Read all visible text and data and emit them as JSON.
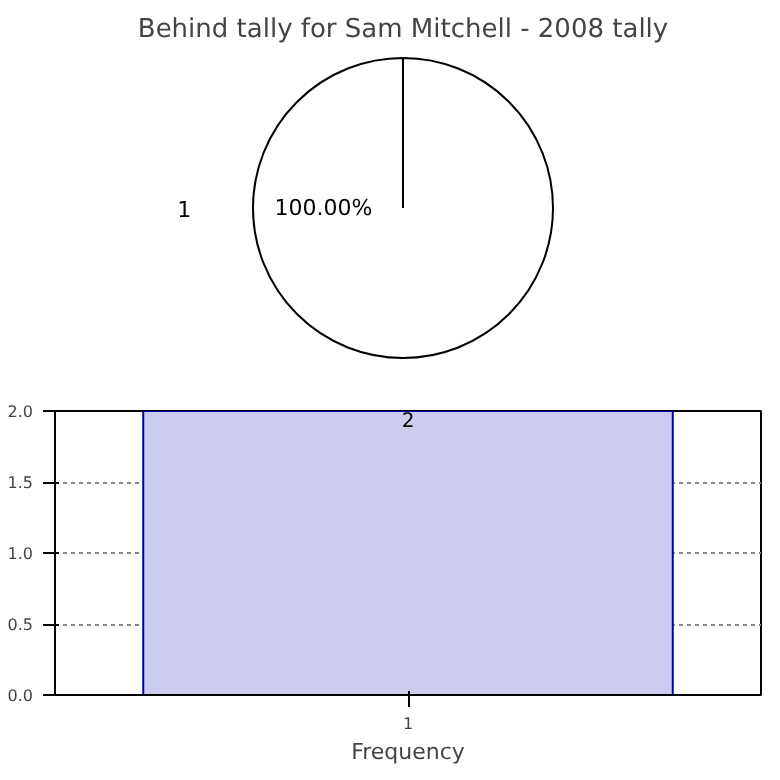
{
  "chart_data": [
    {
      "type": "pie",
      "title": "Behind tally for Sam Mitchell - 2008 tally",
      "categories": [
        "1"
      ],
      "values": [
        100
      ],
      "colors": [
        "#ffffff"
      ],
      "value_labels": [
        "100.00%"
      ]
    },
    {
      "type": "bar",
      "categories": [
        "1"
      ],
      "values": [
        2
      ],
      "color": "#ccccee",
      "xlabel": "Frequency",
      "ylim": [
        0,
        2
      ],
      "yticks": [
        {
          "value": 0,
          "label": "0.0"
        },
        {
          "value": 0.5,
          "label": "0.5"
        },
        {
          "value": 1,
          "label": "1.0"
        },
        {
          "value": 1.5,
          "label": "1.5"
        },
        {
          "value": 2,
          "label": "2.0"
        }
      ],
      "grid": true,
      "data_labels": true
    }
  ]
}
